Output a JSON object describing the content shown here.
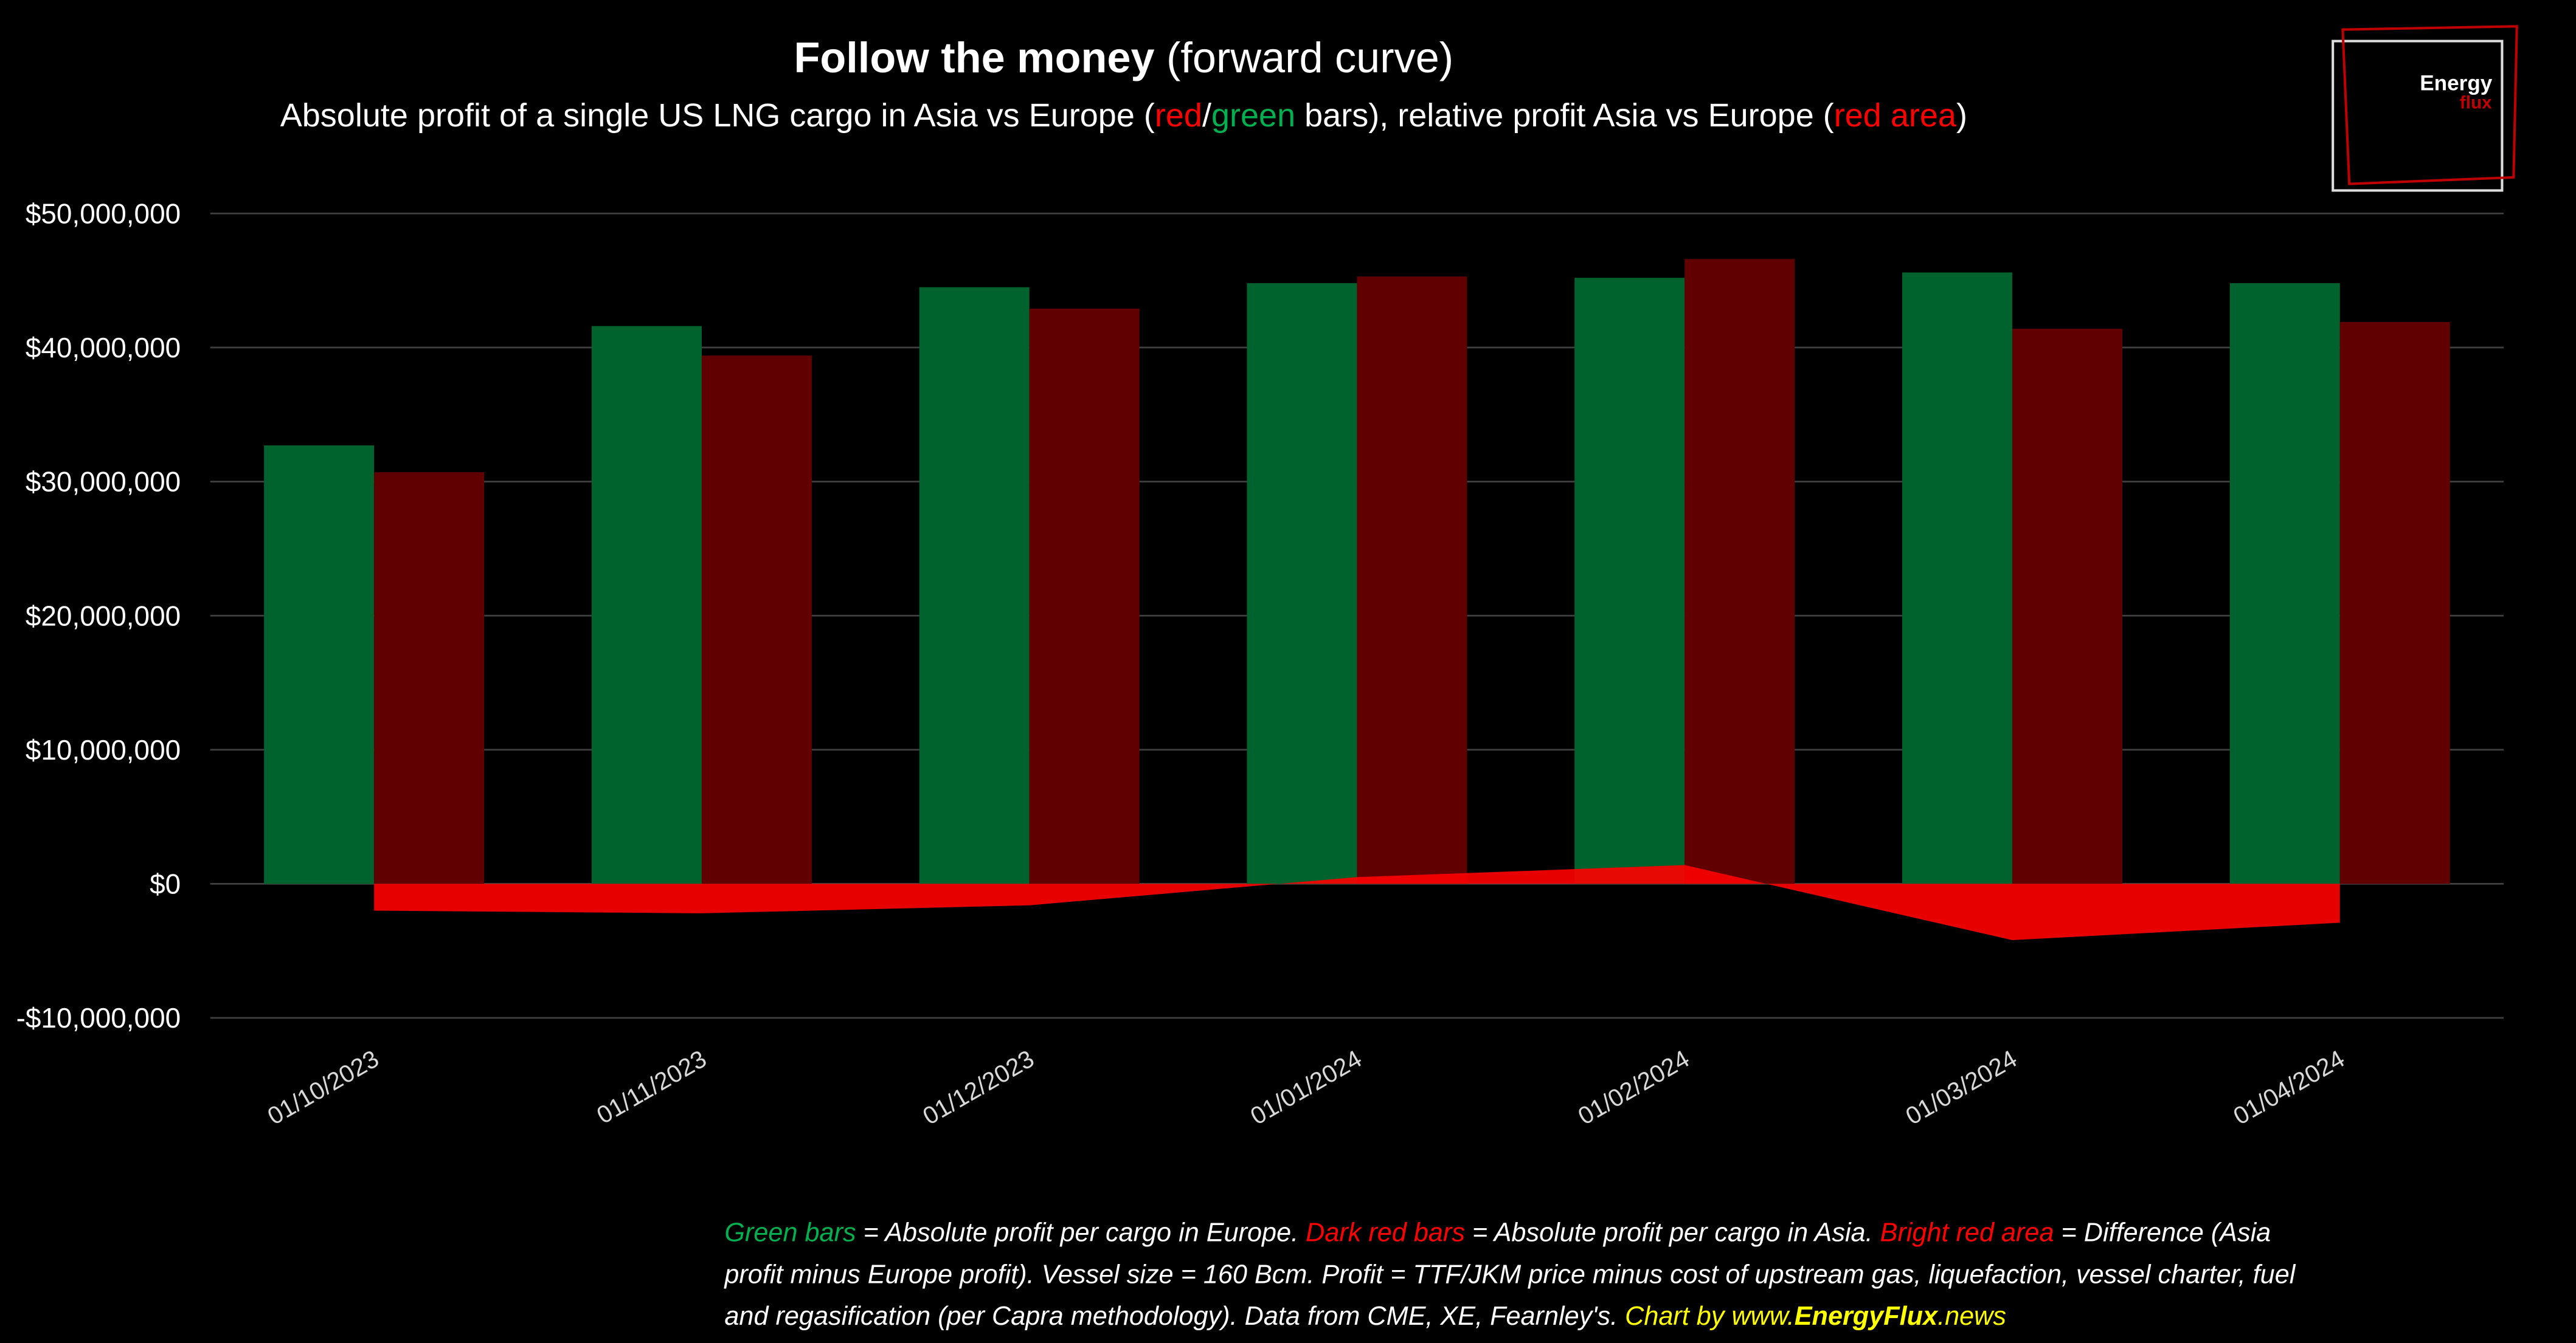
{
  "chart_data": {
    "type": "bar",
    "title": "Follow the money",
    "title_suffix": " (forward curve)",
    "subtitle_parts": [
      {
        "text": "Absolute profit of a single US LNG cargo in Asia vs Europe (",
        "color": "#ffffff"
      },
      {
        "text": "red",
        "color": "#ff0000"
      },
      {
        "text": "/",
        "color": "#ffffff"
      },
      {
        "text": "green",
        "color": "#00b050"
      },
      {
        "text": " bars), relative profit Asia vs Europe (",
        "color": "#ffffff"
      },
      {
        "text": "red area",
        "color": "#ff0000"
      },
      {
        "text": ")",
        "color": "#ffffff"
      }
    ],
    "categories": [
      "01/10/2023",
      "01/11/2023",
      "01/12/2023",
      "01/01/2024",
      "01/02/2024",
      "01/03/2024",
      "01/04/2024"
    ],
    "series": [
      {
        "name": "Europe",
        "type": "bar",
        "color": "#00622c",
        "values": [
          32700000,
          41600000,
          44500000,
          44800000,
          45200000,
          45600000,
          44800000
        ]
      },
      {
        "name": "Asia",
        "type": "bar",
        "color": "#600000",
        "values": [
          30700000,
          39400000,
          42900000,
          45300000,
          46600000,
          41400000,
          41900000
        ]
      },
      {
        "name": "Difference",
        "type": "area",
        "color": "#ff0000",
        "values": [
          -2000000,
          -2200000,
          -1600000,
          500000,
          1400000,
          -4200000,
          -2900000
        ]
      }
    ],
    "ylim": [
      -10000000,
      50000000
    ],
    "yticks": [
      {
        "value": -10000000,
        "label": "-$10,000,000"
      },
      {
        "value": 0,
        "label": "$0"
      },
      {
        "value": 10000000,
        "label": "$10,000,000"
      },
      {
        "value": 20000000,
        "label": "$20,000,000"
      },
      {
        "value": 30000000,
        "label": "$30,000,000"
      },
      {
        "value": 40000000,
        "label": "$40,000,000"
      },
      {
        "value": 50000000,
        "label": "$50,000,000"
      }
    ],
    "grid": true,
    "logo": {
      "line1": "Energy",
      "line2": "flux"
    },
    "footnote_lines": [
      [
        {
          "text": "Green bars",
          "color": "#00b050"
        },
        {
          "text": " = Absolute profit per cargo in Europe. ",
          "color": "#ffffff"
        },
        {
          "text": "Dark red bars",
          "color": "#ff0000"
        },
        {
          "text": " = Absolute profit per cargo in Asia. ",
          "color": "#ffffff"
        },
        {
          "text": "Bright red area",
          "color": "#ff0000"
        },
        {
          "text": " = Difference (Asia",
          "color": "#ffffff"
        }
      ],
      [
        {
          "text": "profit minus Europe profit). Vessel size = 160 Bcm. Profit = TTF/JKM price minus cost of upstream gas, liquefaction, vessel charter, fuel",
          "color": "#ffffff"
        }
      ],
      [
        {
          "text": "and regasification (per Capra methodology). Data from CME, XE, Fearnley's. ",
          "color": "#ffffff"
        },
        {
          "text": "Chart by www.",
          "color": "#ffff00"
        },
        {
          "text": "EnergyFlux",
          "color": "#ffff00",
          "bold": true
        },
        {
          "text": ".news",
          "color": "#ffff00"
        }
      ]
    ]
  }
}
